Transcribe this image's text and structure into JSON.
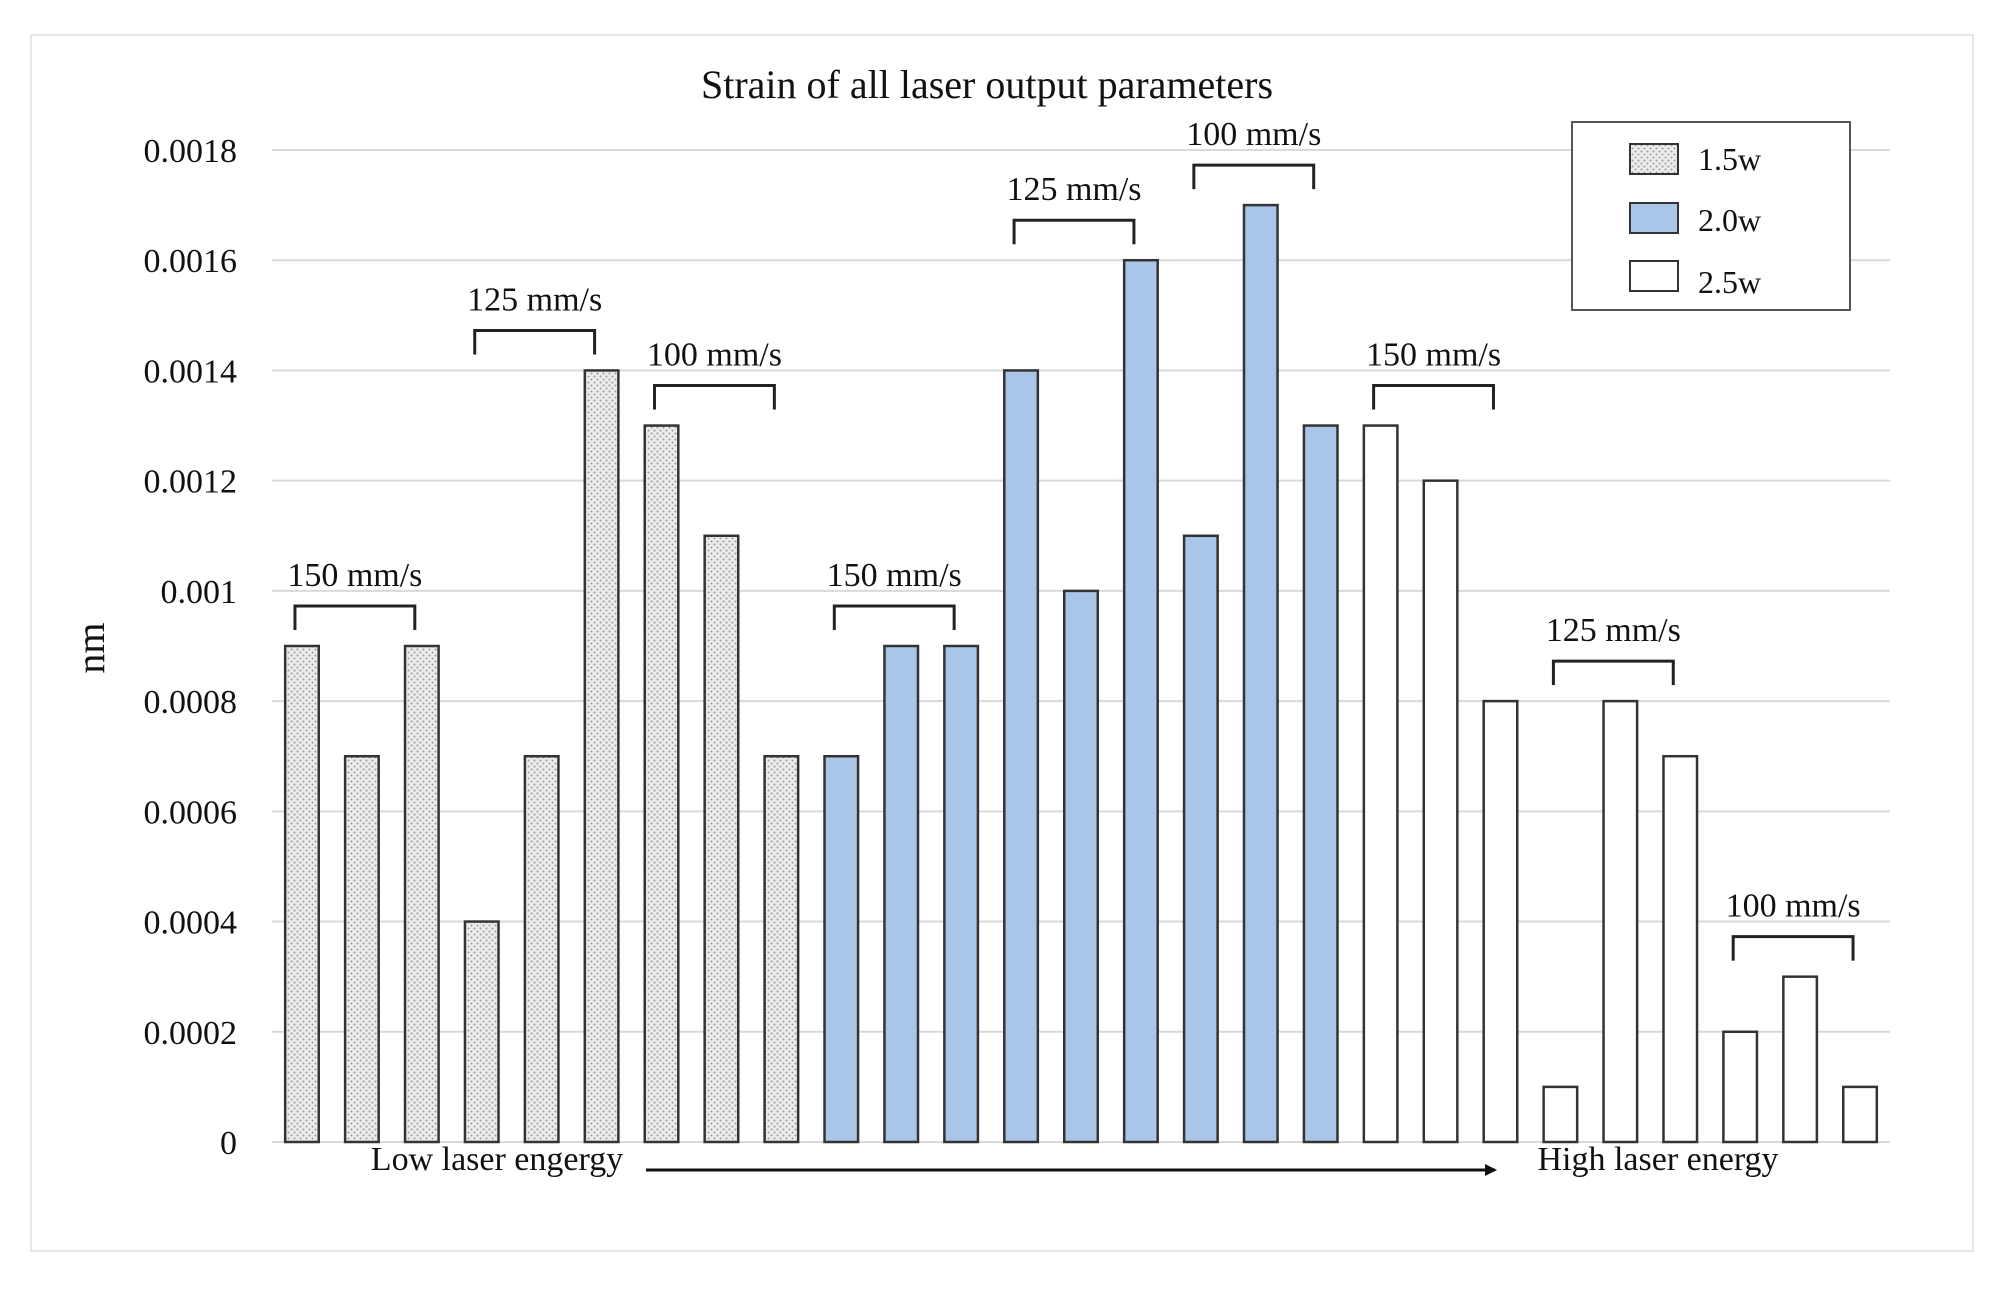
{
  "chart_data": {
    "type": "bar",
    "title": "Strain of all laser output parameters",
    "ylabel": "nm",
    "xlabel": "",
    "ylim": [
      0,
      0.0018
    ],
    "yticks": [
      "0",
      "0.0002",
      "0.0004",
      "0.0006",
      "0.0008",
      "0.001",
      "0.0012",
      "0.0014",
      "0.0016",
      "0.0018"
    ],
    "grid": true,
    "legend_position": "top-right",
    "series": [
      {
        "name": "1.5w",
        "values": [
          0.0009,
          0.0007,
          0.0009,
          0.0004,
          0.0007,
          0.0014,
          0.0013,
          0.0011,
          0.0007
        ]
      },
      {
        "name": "2.0w",
        "values": [
          0.0007,
          0.0009,
          0.0009,
          0.0014,
          0.001,
          0.0016,
          0.0011,
          0.0017,
          0.0013
        ]
      },
      {
        "name": "2.5w",
        "values": [
          0.0013,
          0.0012,
          0.0008,
          0.0001,
          0.0008,
          0.0007,
          0.0002,
          0.0003,
          0.0001
        ]
      }
    ],
    "groups": [
      {
        "series": 0,
        "label": "150 mm/s",
        "start": 0
      },
      {
        "series": 0,
        "label": "125 mm/s",
        "start": 3
      },
      {
        "series": 0,
        "label": "100 mm/s",
        "start": 6
      },
      {
        "series": 1,
        "label": "150 mm/s",
        "start": 0
      },
      {
        "series": 1,
        "label": "125 mm/s",
        "start": 3
      },
      {
        "series": 1,
        "label": "100 mm/s",
        "start": 6
      },
      {
        "series": 2,
        "label": "150 mm/s",
        "start": 0
      },
      {
        "series": 2,
        "label": "125 mm/s",
        "start": 3
      },
      {
        "series": 2,
        "label": "100 mm/s",
        "start": 6
      }
    ],
    "energy_axis": {
      "low_label": "Low laser engergy",
      "high_label": "High laser energy"
    }
  },
  "colors": {
    "series_1_5w": "#e8e8e8",
    "series_2_0w": "#a9c5e8",
    "series_2_5w": "#ffffff",
    "bar_outline": "#333333",
    "grid": "#d9d9d9"
  }
}
